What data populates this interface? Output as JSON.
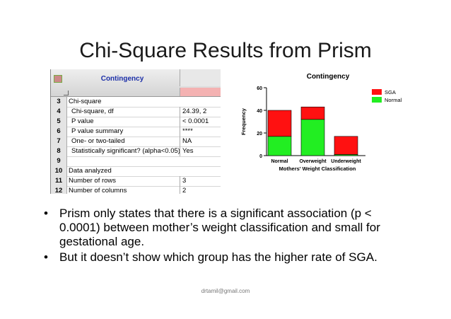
{
  "slide": {
    "title": "Chi-Square Results from Prism",
    "footer": "drtamil@gmail.com"
  },
  "prism_table": {
    "title": "Contingency",
    "rows": [
      {
        "num": "3",
        "label": "Chi-square",
        "value": "",
        "indent": false
      },
      {
        "num": "4",
        "label": "Chi-square, df",
        "value": "24.39, 2",
        "indent": true
      },
      {
        "num": "5",
        "label": "P value",
        "value": "< 0.0001",
        "indent": true
      },
      {
        "num": "6",
        "label": "P value summary",
        "value": "****",
        "indent": true
      },
      {
        "num": "7",
        "label": "One- or two-tailed",
        "value": "NA",
        "indent": true
      },
      {
        "num": "8",
        "label": "Statistically significant? (alpha<0.05)",
        "value": "Yes",
        "indent": true
      },
      {
        "num": "9",
        "label": "",
        "value": "",
        "indent": false
      },
      {
        "num": "10",
        "label": "Data analyzed",
        "value": "",
        "indent": false
      },
      {
        "num": "11",
        "label": "Number of rows",
        "value": "3",
        "indent": false
      },
      {
        "num": "12",
        "label": "Number of columns",
        "value": "2",
        "indent": false
      }
    ]
  },
  "chart_data": {
    "type": "bar",
    "stacked": true,
    "title": "Contingency",
    "xlabel": "Mothers' Weight Classification",
    "ylabel": "Frequency",
    "categories": [
      "Normal",
      "Overweight",
      "Underweight"
    ],
    "ylim": [
      0,
      60
    ],
    "yticks": [
      0,
      20,
      40,
      60
    ],
    "series": [
      {
        "name": "Normal",
        "color": "#22ee22",
        "values": [
          17,
          32,
          1
        ]
      },
      {
        "name": "SGA",
        "color": "#ff1111",
        "values": [
          23,
          11,
          16
        ]
      }
    ],
    "legend_order": [
      "SGA",
      "Normal"
    ],
    "legend_position": "top-right",
    "grid": false
  },
  "bullets": [
    "Prism only states that there is a significant association (p < 0.0001) between mother’s weight classification and small for gestational age.",
    "But it doesn’t show which group has the higher rate of SGA."
  ]
}
